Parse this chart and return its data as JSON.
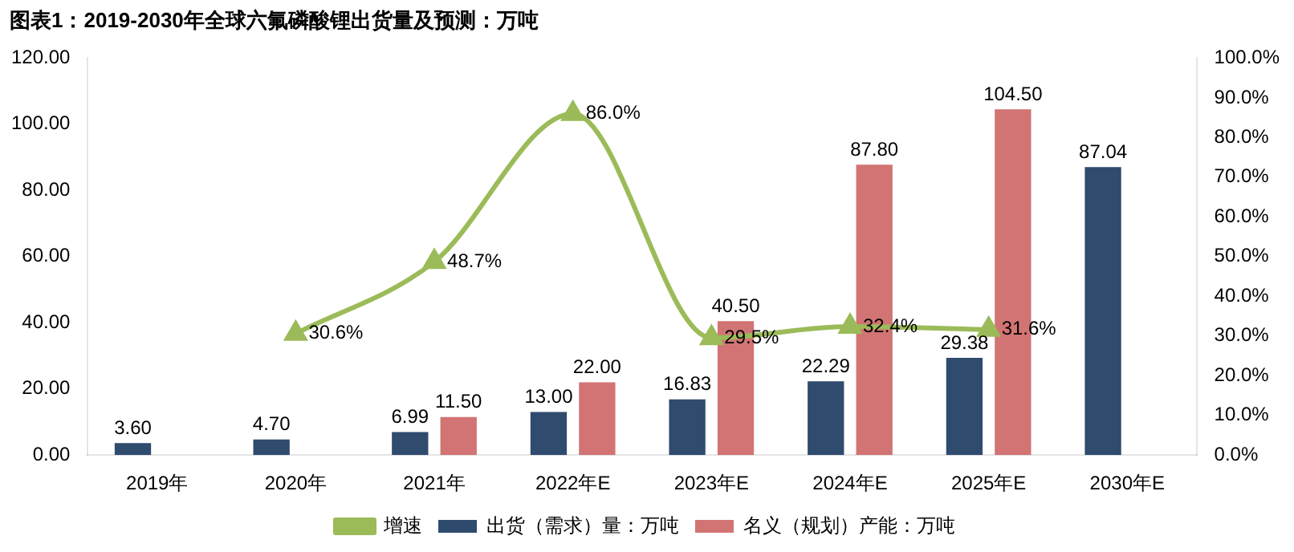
{
  "chart_data": {
    "type": "bar",
    "title": "图表1：2019-2030年全球六氟磷酸锂出货量及预测：万吨",
    "categories": [
      "2019年",
      "2020年",
      "2021年",
      "2022年E",
      "2023年E",
      "2024年E",
      "2025年E",
      "2030年E"
    ],
    "series": [
      {
        "name": "出货（需求）量：万吨",
        "color": "#2f4b6e",
        "values": [
          3.6,
          4.7,
          6.99,
          13.0,
          16.83,
          22.29,
          29.38,
          87.04
        ],
        "value_labels": [
          "3.60",
          "4.70",
          "6.99",
          "13.00",
          "16.83",
          "22.29",
          "29.38",
          "87.04"
        ]
      },
      {
        "name": "名义（规划）产能：万吨",
        "color": "#d27474",
        "values": [
          null,
          null,
          11.5,
          22.0,
          40.5,
          87.8,
          104.5,
          null
        ],
        "value_labels": [
          null,
          null,
          "11.50",
          "22.00",
          "40.50",
          "87.80",
          "104.50",
          null
        ]
      },
      {
        "name": "增速",
        "type": "line",
        "axis": "y2",
        "color": "#9bbb59",
        "marker": "triangle",
        "values": [
          null,
          30.6,
          48.7,
          86.0,
          29.5,
          32.4,
          31.6,
          null
        ],
        "value_labels": [
          null,
          "30.6%",
          "48.7%",
          "86.0%",
          "29.5%",
          "32.4%",
          "31.6%",
          null
        ]
      }
    ],
    "ylim": [
      0,
      120
    ],
    "yticks": [
      {
        "value": 0,
        "label": "0.00"
      },
      {
        "value": 20,
        "label": "20.00"
      },
      {
        "value": 40,
        "label": "40.00"
      },
      {
        "value": 60,
        "label": "60.00"
      },
      {
        "value": 80,
        "label": "80.00"
      },
      {
        "value": 100,
        "label": "100.00"
      },
      {
        "value": 120,
        "label": "120.00"
      }
    ],
    "y2lim": [
      0,
      100
    ],
    "y2ticks": [
      {
        "value": 0,
        "label": "0.0%"
      },
      {
        "value": 10,
        "label": "10.0%"
      },
      {
        "value": 20,
        "label": "20.0%"
      },
      {
        "value": 30,
        "label": "30.0%"
      },
      {
        "value": 40,
        "label": "40.0%"
      },
      {
        "value": 50,
        "label": "50.0%"
      },
      {
        "value": 60,
        "label": "60.0%"
      },
      {
        "value": 70,
        "label": "70.0%"
      },
      {
        "value": 80,
        "label": "80.0%"
      },
      {
        "value": 90,
        "label": "90.0%"
      },
      {
        "value": 100,
        "label": "100.0%"
      }
    ],
    "grid": false,
    "legend": "bottom"
  }
}
